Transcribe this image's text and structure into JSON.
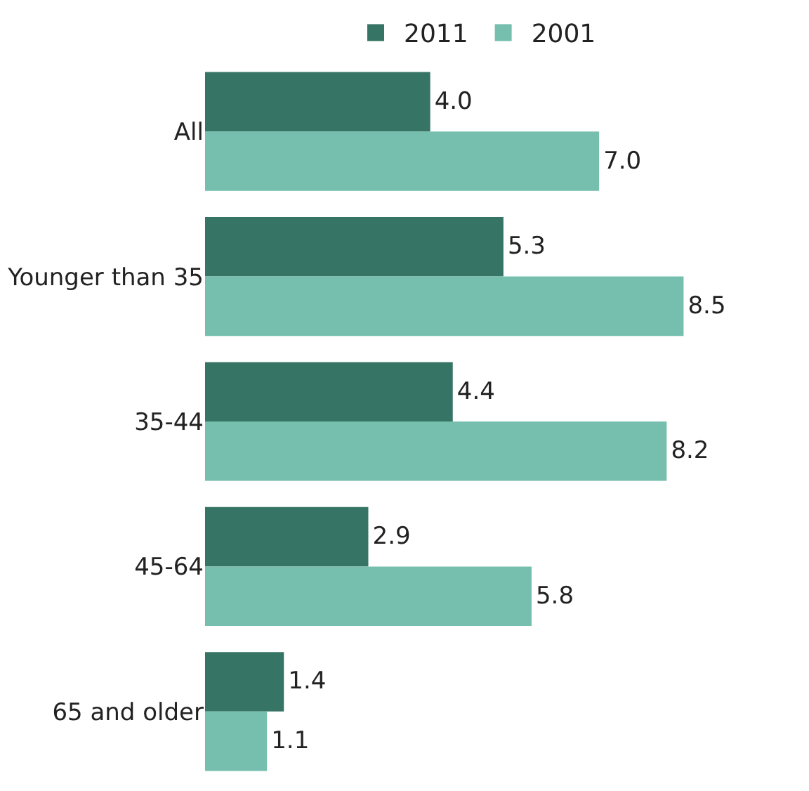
{
  "chart_data": {
    "type": "bar",
    "orientation": "horizontal",
    "categories": [
      "All",
      "Younger than 35",
      "35-44",
      "45-64",
      "65 and older"
    ],
    "series": [
      {
        "name": "2011",
        "color": "#367565",
        "values": [
          4.0,
          5.3,
          4.4,
          2.9,
          1.4
        ],
        "value_labels": [
          "4.0",
          "5.3",
          "4.4",
          "2.9",
          "1.4"
        ]
      },
      {
        "name": "2001",
        "color": "#76bfae",
        "values": [
          7.0,
          8.5,
          8.2,
          5.8,
          1.1
        ],
        "value_labels": [
          "7.0",
          "8.5",
          "8.2",
          "5.8",
          "1.1"
        ]
      }
    ],
    "legend": "top",
    "tick_labels": "y"
  }
}
